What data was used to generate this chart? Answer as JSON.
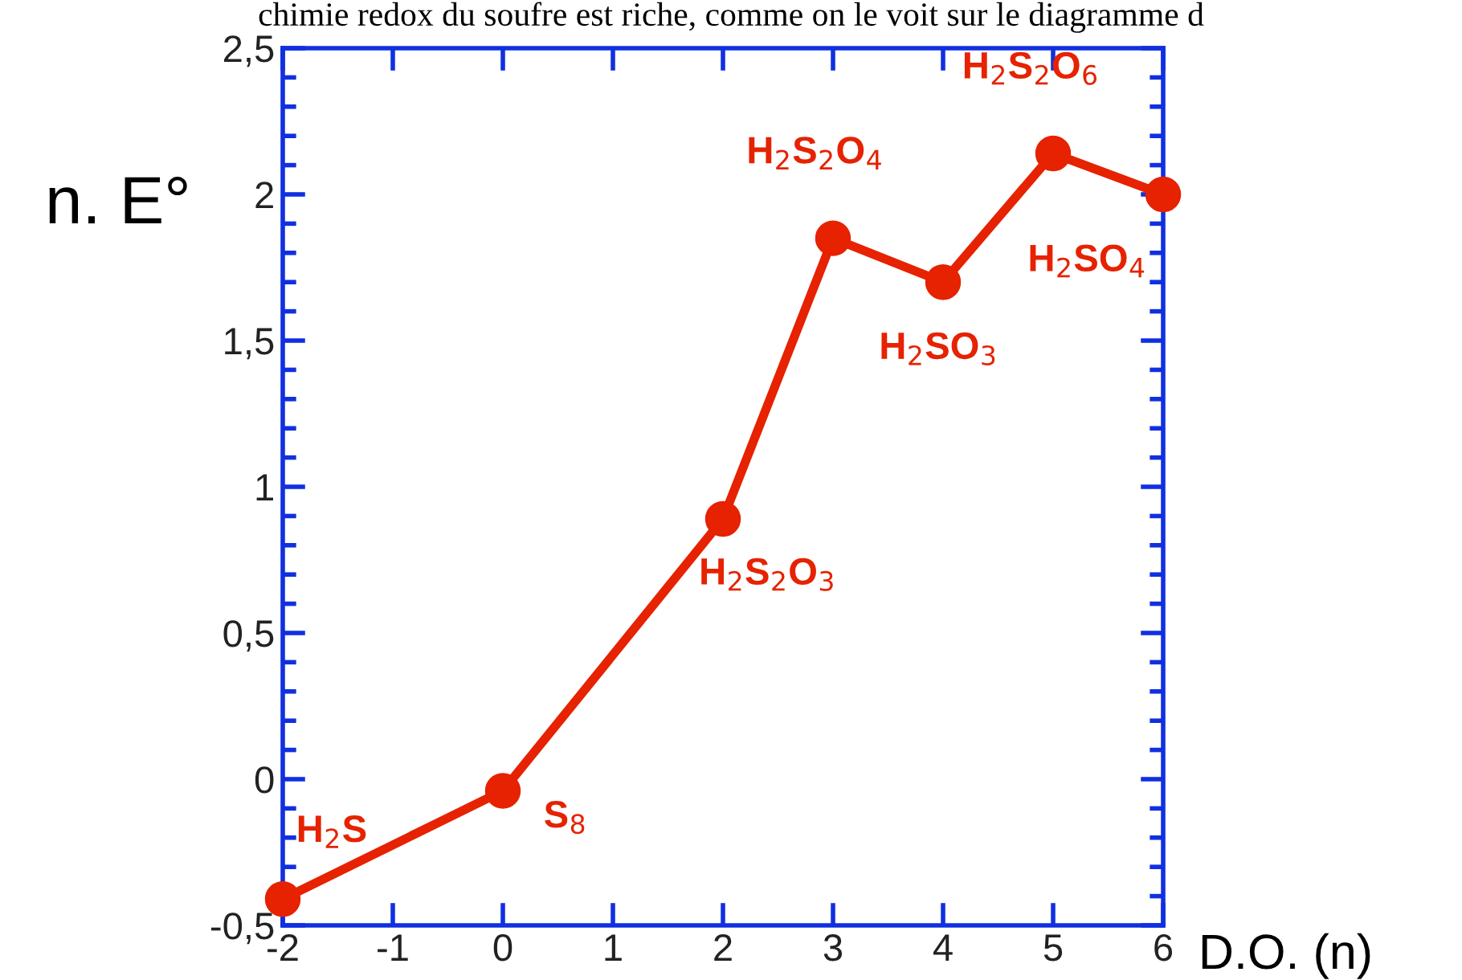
{
  "chart_data": {
    "type": "line",
    "ylabel": "n. E°",
    "xlabel": "D.O. (n)",
    "x": [
      -2,
      0,
      2,
      3,
      4,
      5,
      6
    ],
    "series": [
      {
        "color": "#e62200",
        "values": [
          -0.41,
          -0.04,
          0.89,
          1.85,
          1.7,
          2.14,
          2.0
        ]
      }
    ],
    "marker": "circle",
    "line_style": "solid",
    "grid": false,
    "xlim": [
      -2,
      6
    ],
    "ylim": [
      -0.5,
      2.5
    ],
    "xticks": [
      -2,
      -1,
      0,
      1,
      2,
      3,
      4,
      5,
      6
    ],
    "yticks": [
      {
        "value": -0.5,
        "label": "-0,5"
      },
      0,
      {
        "value": 0.5,
        "label": "0,5"
      },
      1,
      {
        "value": 1.5,
        "label": "1,5"
      },
      2,
      {
        "value": 2.5,
        "label": "2,5"
      }
    ],
    "annotations": [
      "chimie redox du soufre est riche, comme on le voit sur le diagramme d",
      {
        "text": "H$_{2}$S",
        "x": -2,
        "y": -0.41
      },
      {
        "text": "S$_{8}$",
        "x": 0,
        "y": -0.04
      },
      {
        "text": "H$_{2}$S$_{2}$O$_{3}$",
        "x": 2,
        "y": 0.89
      },
      {
        "text": "H$_{2}$S$_{2}$O$_{4}$",
        "x": 3,
        "y": 1.85
      },
      {
        "text": "H$_{2}$SO$_{3}$",
        "x": 4,
        "y": 1.7
      },
      {
        "text": "H$_{2}$S$_{2}$O$_{6}$",
        "x": 5,
        "y": 2.14
      },
      {
        "text": "H$_{2}$SO$_{4}$",
        "x": 6,
        "y": 2.0
      }
    ]
  }
}
